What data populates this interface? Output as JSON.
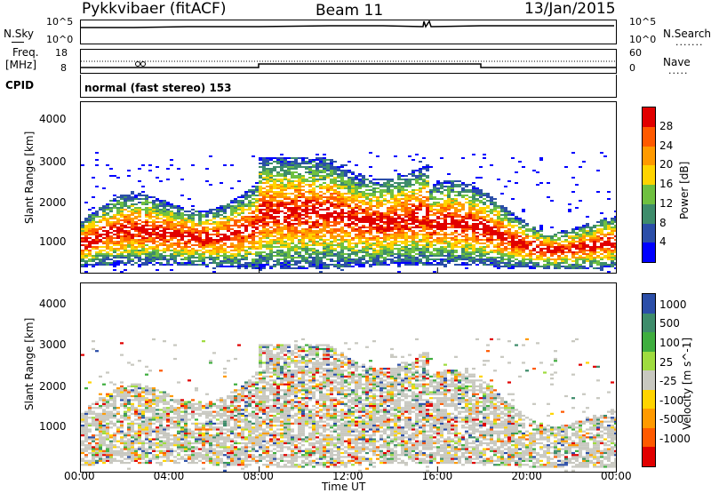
{
  "header": {
    "title": "Pykkvibaer (fitACF)",
    "beam": "Beam 11",
    "date": "13/Jan/2015"
  },
  "noise_panel": {
    "left_label": "N.Sky",
    "right_label": "N.Search",
    "left_ticks": [
      "10^5",
      "10^0"
    ],
    "right_ticks": [
      "10^5",
      "10^0"
    ]
  },
  "freq_panel": {
    "left_label_1": "Freq.",
    "left_label_2": "[MHz]",
    "left_ticks": [
      "18",
      "8"
    ],
    "right_label": "Nave",
    "right_ticks": [
      "60",
      "0"
    ]
  },
  "cpid": {
    "label": "CPID",
    "text": "normal (fast stereo) 153"
  },
  "power_colorbar": {
    "label": "Power [dB]",
    "ticks": [
      "28",
      "24",
      "20",
      "16",
      "12",
      "8",
      "4"
    ],
    "colors": [
      "#e10000",
      "#ff5a00",
      "#ff9a00",
      "#ffd400",
      "#6fc040",
      "#3e8c6b",
      "#2b4ea8",
      "#0000ff"
    ]
  },
  "velocity_colorbar": {
    "label": "Velocity [m s^-1]",
    "ticks": [
      "1000",
      "500",
      "100",
      "25",
      "-25",
      "-100",
      "-500",
      "-1000"
    ],
    "colors": [
      "#2b4ea8",
      "#3e8c6b",
      "#3fae3f",
      "#9fdc3f",
      "#c8c8c0",
      "#ffd400",
      "#ff9a00",
      "#ff5a00",
      "#e10000"
    ]
  },
  "chart_data": [
    {
      "type": "heatmap",
      "name": "power",
      "ylabel": "Slant Range [km]",
      "yticks": [
        "4000",
        "3000",
        "2000",
        "1000"
      ],
      "ylim": [
        180,
        4500
      ],
      "xlim_hours": [
        0,
        24
      ],
      "colorbar_label": "Power [dB]",
      "colorbar_range": [
        0,
        30
      ]
    },
    {
      "type": "heatmap",
      "name": "velocity",
      "ylabel": "Slant Range [km]",
      "yticks": [
        "4000",
        "3000",
        "2000",
        "1000"
      ],
      "ylim": [
        180,
        4500
      ],
      "xlim_hours": [
        0,
        24
      ],
      "xlabel": "Time UT",
      "xticks": [
        "00:00",
        "04:00",
        "08:00",
        "12:00",
        "16:00",
        "20:00",
        "00:00"
      ],
      "colorbar_label": "Velocity [m s^-1]",
      "colorbar_range": [
        -1000,
        1000
      ]
    }
  ]
}
